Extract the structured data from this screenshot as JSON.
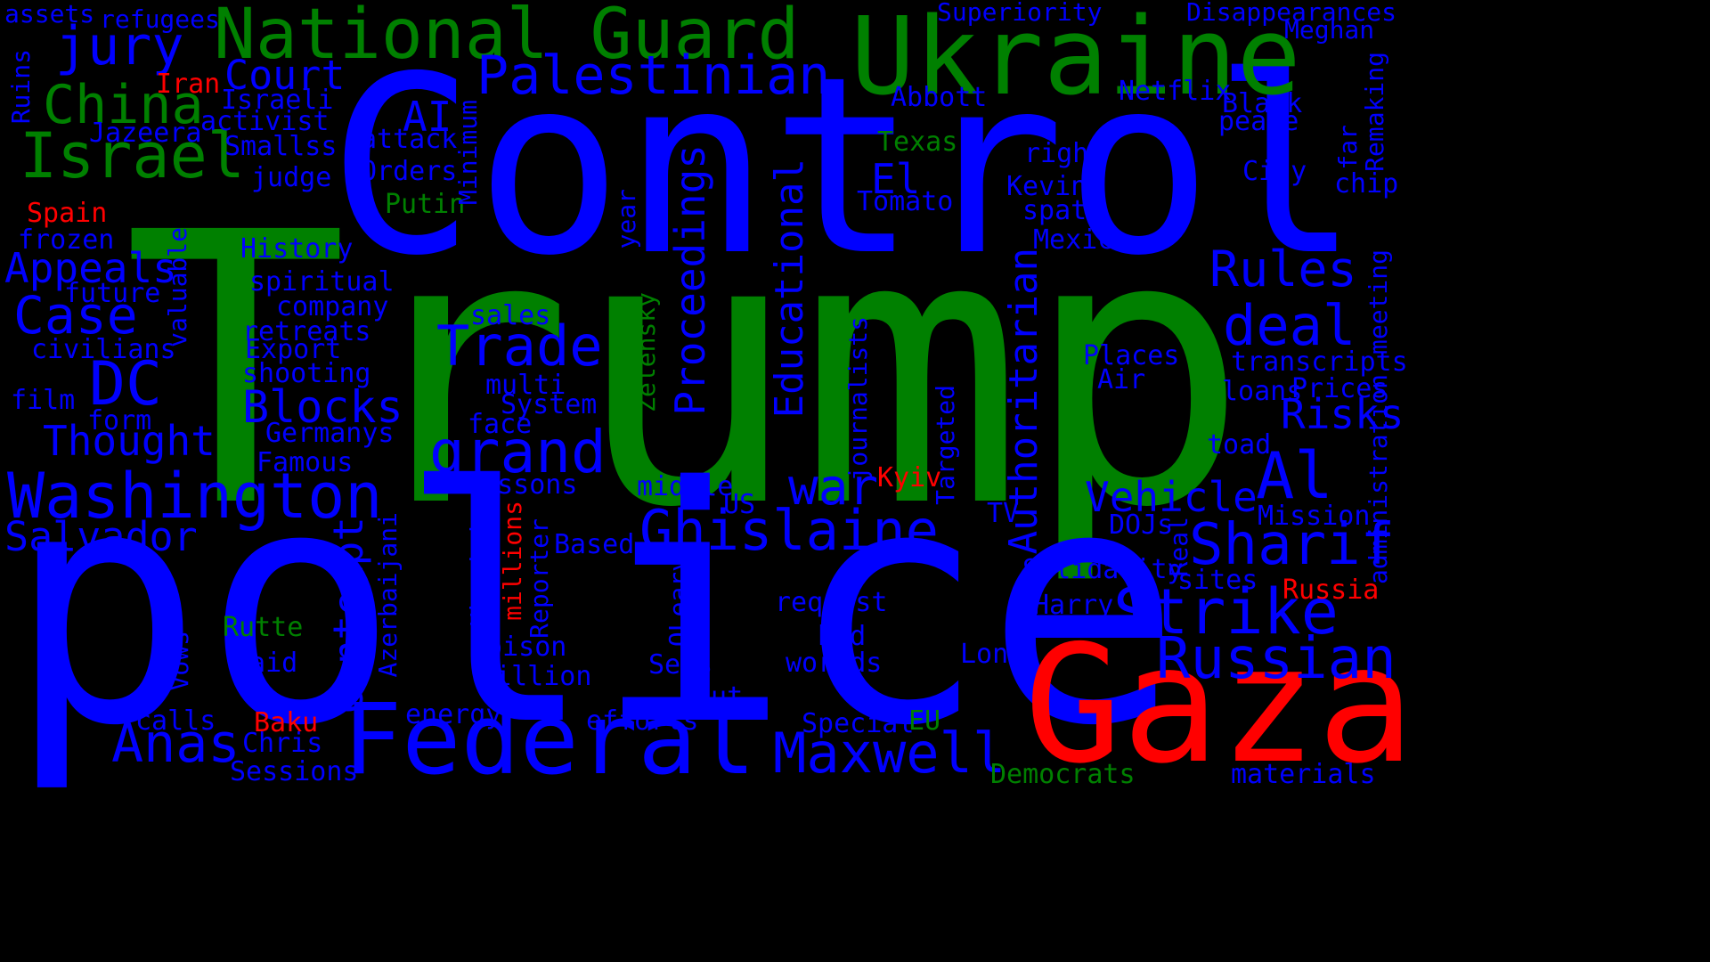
{
  "palette": {
    "blue": "#0000ff",
    "green": "#008000",
    "red": "#ff0000",
    "background": "#000000"
  },
  "words": [
    {
      "id": "trump",
      "text": "Trump",
      "color": "green"
    },
    {
      "id": "control",
      "text": "Control",
      "color": "blue"
    },
    {
      "id": "police",
      "text": "police",
      "color": "blue"
    },
    {
      "id": "gaza",
      "text": "Gaza",
      "color": "red"
    },
    {
      "id": "ukraine",
      "text": "Ukraine",
      "color": "green"
    },
    {
      "id": "national-guard",
      "text": "National Guard",
      "color": "green"
    },
    {
      "id": "federal",
      "text": "Federal",
      "color": "blue"
    },
    {
      "id": "israel",
      "text": "Israel",
      "color": "green"
    },
    {
      "id": "china",
      "text": "China",
      "color": "green"
    },
    {
      "id": "washington",
      "text": "Washington",
      "color": "blue"
    },
    {
      "id": "dc",
      "text": "DC",
      "color": "blue"
    },
    {
      "id": "palestinian",
      "text": "Palestinian",
      "color": "blue"
    },
    {
      "id": "ghislaine",
      "text": "Ghislaine",
      "color": "blue"
    },
    {
      "id": "maxwell",
      "text": "Maxwell",
      "color": "blue"
    },
    {
      "id": "strike",
      "text": "Strike",
      "color": "blue"
    },
    {
      "id": "russian",
      "text": "Russian",
      "color": "blue"
    },
    {
      "id": "sharif",
      "text": "Sharif",
      "color": "blue"
    },
    {
      "id": "grand",
      "text": "grand",
      "color": "blue"
    },
    {
      "id": "trade",
      "text": "Trade",
      "color": "blue"
    },
    {
      "id": "case",
      "text": "Case",
      "color": "blue"
    },
    {
      "id": "jury",
      "text": "jury",
      "color": "blue"
    },
    {
      "id": "court",
      "text": "Court",
      "color": "blue"
    },
    {
      "id": "appeals",
      "text": "Appeals",
      "color": "blue"
    },
    {
      "id": "thought",
      "text": "Thought",
      "color": "blue"
    },
    {
      "id": "salvador",
      "text": "Salvador",
      "color": "blue"
    },
    {
      "id": "anas",
      "text": "Anas",
      "color": "blue"
    },
    {
      "id": "blocks",
      "text": "Blocks",
      "color": "blue"
    },
    {
      "id": "war",
      "text": "war",
      "color": "blue"
    },
    {
      "id": "al",
      "text": "Al",
      "color": "blue"
    },
    {
      "id": "rules",
      "text": "Rules",
      "color": "blue"
    },
    {
      "id": "deal",
      "text": "deal",
      "color": "blue"
    },
    {
      "id": "risks",
      "text": "Risks",
      "color": "blue"
    },
    {
      "id": "vehicle",
      "text": "Vehicle",
      "color": "blue"
    },
    {
      "id": "el",
      "text": "El",
      "color": "blue"
    },
    {
      "id": "ai",
      "text": "AI",
      "color": "blue"
    },
    {
      "id": "proceedings",
      "text": "Proceedings",
      "color": "blue",
      "vertical": true
    },
    {
      "id": "educational",
      "text": "Educational",
      "color": "blue",
      "vertical": true
    },
    {
      "id": "authoritarian",
      "text": "Authoritarian",
      "color": "blue",
      "vertical": true
    },
    {
      "id": "contempt",
      "text": "Contempt",
      "color": "blue",
      "vertical": true
    },
    {
      "id": "assets",
      "text": "assets",
      "color": "blue"
    },
    {
      "id": "refugees",
      "text": "refugees",
      "color": "blue"
    },
    {
      "id": "superiority",
      "text": "Superiority",
      "color": "blue"
    },
    {
      "id": "disappearances",
      "text": "Disappearances",
      "color": "blue"
    },
    {
      "id": "meghan",
      "text": "Meghan",
      "color": "blue"
    },
    {
      "id": "iran",
      "text": "Iran",
      "color": "red"
    },
    {
      "id": "israeli",
      "text": "Israeli",
      "color": "blue"
    },
    {
      "id": "activist",
      "text": "activist",
      "color": "blue"
    },
    {
      "id": "jazeera",
      "text": "Jazeera",
      "color": "blue"
    },
    {
      "id": "smallss",
      "text": "Smallss",
      "color": "blue"
    },
    {
      "id": "attack",
      "text": "attack",
      "color": "blue"
    },
    {
      "id": "orders",
      "text": "Orders",
      "color": "blue"
    },
    {
      "id": "judge",
      "text": "judge",
      "color": "blue"
    },
    {
      "id": "putin",
      "text": "Putin",
      "color": "green"
    },
    {
      "id": "spain",
      "text": "Spain",
      "color": "red"
    },
    {
      "id": "frozen",
      "text": "frozen",
      "color": "blue"
    },
    {
      "id": "history",
      "text": "History",
      "color": "blue"
    },
    {
      "id": "spiritual",
      "text": "spiritual",
      "color": "blue"
    },
    {
      "id": "future",
      "text": "future",
      "color": "blue"
    },
    {
      "id": "company",
      "text": "company",
      "color": "blue"
    },
    {
      "id": "retreats",
      "text": "retreats",
      "color": "blue"
    },
    {
      "id": "civilians",
      "text": "civilians",
      "color": "blue"
    },
    {
      "id": "export",
      "text": "Export",
      "color": "blue"
    },
    {
      "id": "shooting",
      "text": "shooting",
      "color": "blue"
    },
    {
      "id": "film",
      "text": "film",
      "color": "blue"
    },
    {
      "id": "form",
      "text": "form",
      "color": "blue"
    },
    {
      "id": "germanys",
      "text": "Germanys",
      "color": "blue"
    },
    {
      "id": "famous",
      "text": "Famous",
      "color": "blue"
    },
    {
      "id": "abbott",
      "text": "Abbott",
      "color": "blue"
    },
    {
      "id": "texas",
      "text": "Texas",
      "color": "green"
    },
    {
      "id": "tomato",
      "text": "Tomato",
      "color": "blue"
    },
    {
      "id": "netflix",
      "text": "Netflix",
      "color": "blue"
    },
    {
      "id": "black",
      "text": "Black",
      "color": "blue"
    },
    {
      "id": "peace",
      "text": "peace",
      "color": "blue"
    },
    {
      "id": "right",
      "text": "right",
      "color": "blue"
    },
    {
      "id": "kevin",
      "text": "Kevin",
      "color": "blue"
    },
    {
      "id": "spat",
      "text": "spat",
      "color": "blue"
    },
    {
      "id": "city",
      "text": "City",
      "color": "blue"
    },
    {
      "id": "chip",
      "text": "chip",
      "color": "blue"
    },
    {
      "id": "mexico",
      "text": "Mexico",
      "color": "blue"
    },
    {
      "id": "places",
      "text": "Places",
      "color": "blue"
    },
    {
      "id": "air",
      "text": "Air",
      "color": "blue"
    },
    {
      "id": "transcripts",
      "text": "transcripts",
      "color": "blue"
    },
    {
      "id": "loans",
      "text": "loans",
      "color": "blue"
    },
    {
      "id": "prices",
      "text": "Prices",
      "color": "blue"
    },
    {
      "id": "toad",
      "text": "toad",
      "color": "blue"
    },
    {
      "id": "mission",
      "text": "Mission",
      "color": "blue"
    },
    {
      "id": "sales",
      "text": "sales",
      "color": "blue"
    },
    {
      "id": "multi",
      "text": "multi",
      "color": "blue"
    },
    {
      "id": "system",
      "text": "System",
      "color": "blue"
    },
    {
      "id": "face",
      "text": "face",
      "color": "blue"
    },
    {
      "id": "lessons",
      "text": "Lessons",
      "color": "blue"
    },
    {
      "id": "middle",
      "text": "middle",
      "color": "blue"
    },
    {
      "id": "us",
      "text": "US",
      "color": "blue"
    },
    {
      "id": "based",
      "text": "Based",
      "color": "blue"
    },
    {
      "id": "kyiv",
      "text": "Kyiv",
      "color": "red"
    },
    {
      "id": "tv",
      "text": "TV",
      "color": "blue"
    },
    {
      "id": "dojs",
      "text": "DOJs",
      "color": "blue"
    },
    {
      "id": "solidarity",
      "text": "Solidarity",
      "color": "blue"
    },
    {
      "id": "sites",
      "text": "sites",
      "color": "blue"
    },
    {
      "id": "russia",
      "text": "Russia",
      "color": "red"
    },
    {
      "id": "harry",
      "text": "Harry",
      "color": "blue"
    },
    {
      "id": "request",
      "text": "request",
      "color": "blue"
    },
    {
      "id": "bid",
      "text": "bid",
      "color": "blue"
    },
    {
      "id": "worlds",
      "text": "worlds",
      "color": "blue"
    },
    {
      "id": "long",
      "text": "Long",
      "color": "blue"
    },
    {
      "id": "rutte",
      "text": "Rutte",
      "color": "green"
    },
    {
      "id": "raid",
      "text": "raid",
      "color": "blue"
    },
    {
      "id": "poison",
      "text": "poison",
      "color": "blue"
    },
    {
      "id": "billion",
      "text": "billion",
      "color": "blue"
    },
    {
      "id": "sets",
      "text": "Sets",
      "color": "blue"
    },
    {
      "id": "cut",
      "text": "cut",
      "color": "blue"
    },
    {
      "id": "calls",
      "text": "calls",
      "color": "blue"
    },
    {
      "id": "baku",
      "text": "Baku",
      "color": "red"
    },
    {
      "id": "chris",
      "text": "Chris",
      "color": "blue"
    },
    {
      "id": "energy",
      "text": "energy",
      "color": "blue"
    },
    {
      "id": "efforts",
      "text": "efforts",
      "color": "blue"
    },
    {
      "id": "special",
      "text": "Special",
      "color": "blue"
    },
    {
      "id": "eu",
      "text": "EU",
      "color": "green"
    },
    {
      "id": "sessions",
      "text": "Sessions",
      "color": "blue"
    },
    {
      "id": "democrats",
      "text": "Democrats",
      "color": "green"
    },
    {
      "id": "materials",
      "text": "materials",
      "color": "blue"
    },
    {
      "id": "ruins",
      "text": "Ruins",
      "color": "blue",
      "vertical": true
    },
    {
      "id": "minimum",
      "text": "Minimum",
      "color": "blue",
      "vertical": true
    },
    {
      "id": "year",
      "text": "year",
      "color": "blue",
      "vertical": true
    },
    {
      "id": "valuable",
      "text": "valuable",
      "color": "blue",
      "vertical": true
    },
    {
      "id": "zelensky",
      "text": "Zelensky",
      "color": "green",
      "vertical": true
    },
    {
      "id": "journalists",
      "text": "journalists",
      "color": "blue",
      "vertical": true
    },
    {
      "id": "targeted",
      "text": "Targeted",
      "color": "blue",
      "vertical": true
    },
    {
      "id": "azerbaijani",
      "text": "Azerbaijani",
      "color": "blue",
      "vertical": true
    },
    {
      "id": "ukrainian",
      "text": "Ukrainian",
      "color": "blue",
      "vertical": true
    },
    {
      "id": "millions",
      "text": "millions",
      "color": "red",
      "vertical": true
    },
    {
      "id": "reporter",
      "text": "Reporter",
      "color": "blue",
      "vertical": true
    },
    {
      "id": "oleary",
      "text": "OLeary",
      "color": "blue",
      "vertical": true
    },
    {
      "id": "vows",
      "text": "Vows",
      "color": "blue",
      "vertical": true
    },
    {
      "id": "real",
      "text": "Real",
      "color": "blue",
      "vertical": true
    },
    {
      "id": "far",
      "text": "far",
      "color": "blue",
      "vertical": true
    },
    {
      "id": "remaking",
      "text": "Remaking",
      "color": "blue",
      "vertical": true
    },
    {
      "id": "meeting",
      "text": "meeting",
      "color": "blue",
      "vertical": true
    },
    {
      "id": "administration",
      "text": "administration",
      "color": "blue",
      "vertical": true
    }
  ]
}
